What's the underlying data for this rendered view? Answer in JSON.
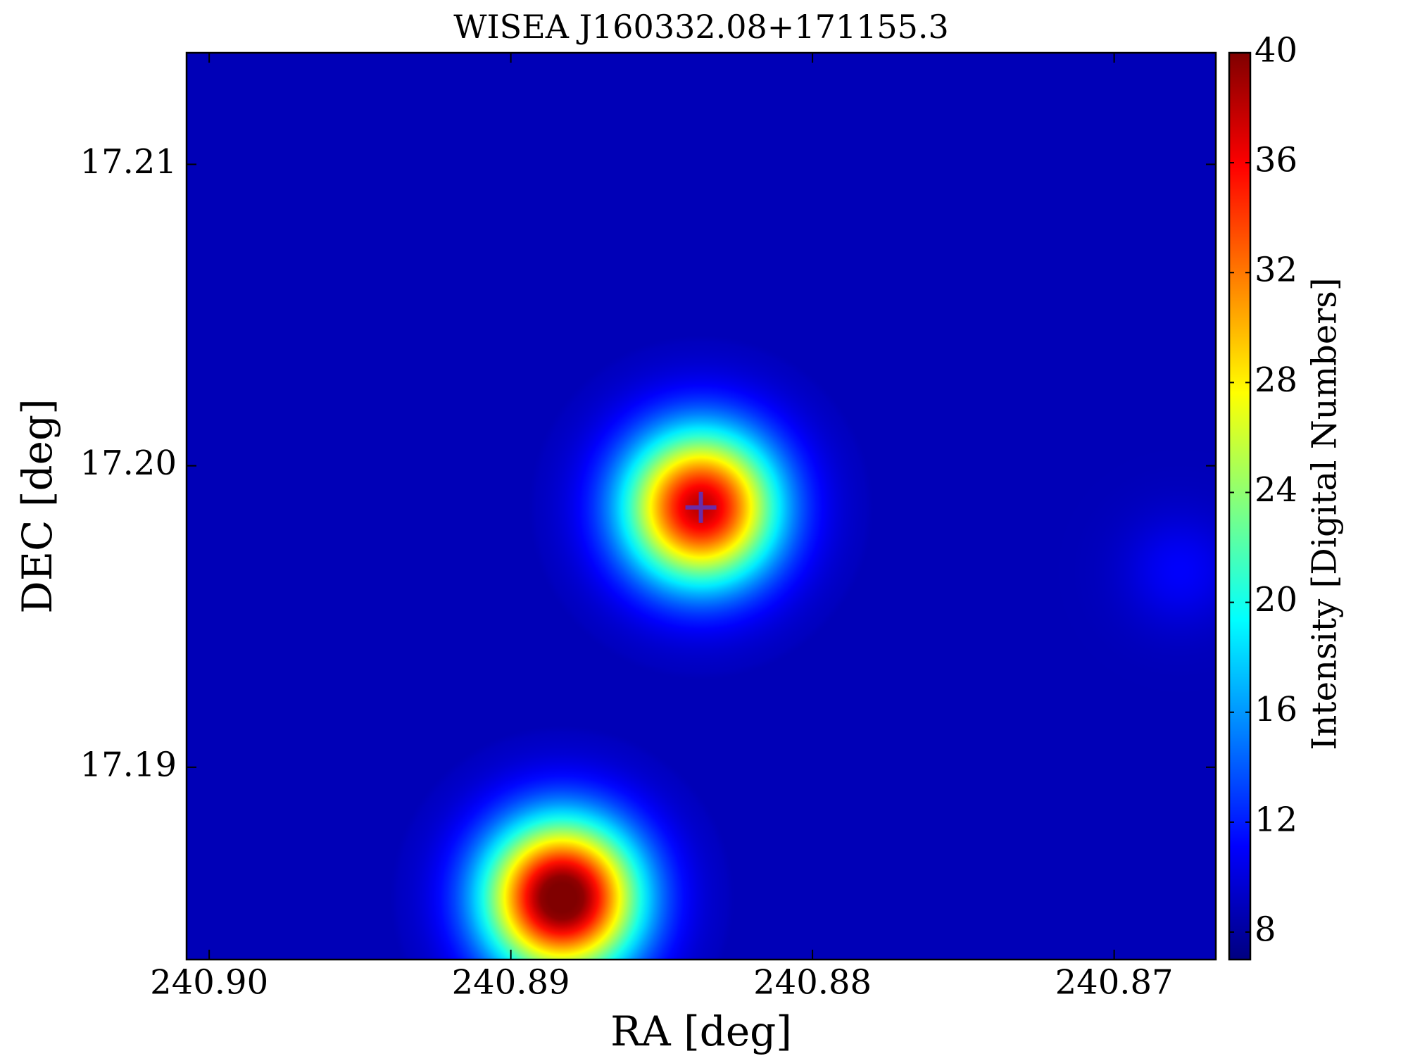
{
  "chart_data": {
    "type": "heatmap",
    "title": "WISEA J160332.08+171155.3",
    "xlabel": "RA [deg]",
    "ylabel": "DEC [deg]",
    "colorbar_label": "Intensity [Digital Numbers]",
    "colormap": "jet",
    "xlim": [
      240.90075,
      240.86663
    ],
    "ylim": [
      17.18362,
      17.2137
    ],
    "xticks": [
      {
        "value": 240.9,
        "label": "240.90"
      },
      240.89,
      240.88,
      240.87
    ],
    "yticks": [
      17.19,
      {
        "value": 17.2,
        "label": "17.20"
      },
      17.21
    ],
    "clim": [
      7,
      40
    ],
    "cticks": [
      8,
      12,
      16,
      20,
      24,
      28,
      32,
      36,
      40
    ],
    "background": 8.8,
    "sources": [
      {
        "ra": 240.8837,
        "dec": 17.19862,
        "peak": 38,
        "fwhm": 0.0042
      },
      {
        "ra": 240.8883,
        "dec": 17.18567,
        "peak": 42,
        "fwhm": 0.0042
      },
      {
        "ra": 240.86783,
        "dec": 17.19651,
        "peak": 11,
        "fwhm": 0.003
      }
    ],
    "marker": {
      "ra": 240.8837,
      "dec": 17.19862,
      "color": "#6a2ca8"
    }
  }
}
